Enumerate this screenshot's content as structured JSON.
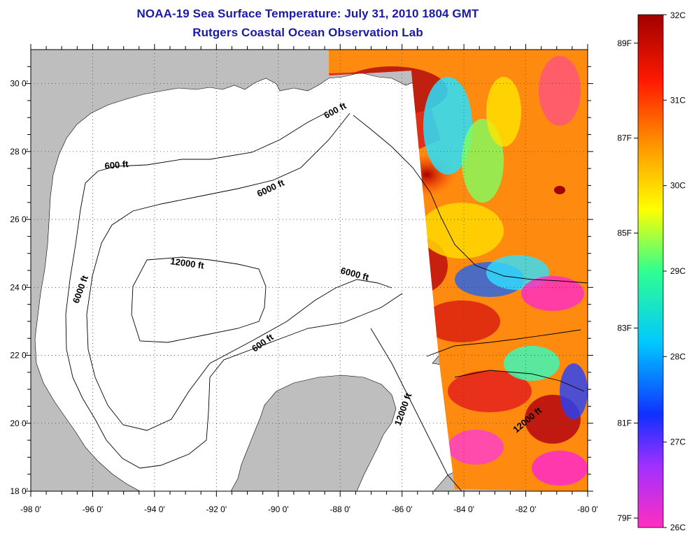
{
  "header": {
    "title": "NOAA-19 Sea Surface Temperature:  July 31, 2010 1804 GMT",
    "subtitle": "Rutgers Coastal Ocean Observation Lab"
  },
  "map": {
    "lon_ticks": [
      "-98 0'",
      "-96 0'",
      "-94 0'",
      "-92 0'",
      "-90 0'",
      "-88 0'",
      "-86 0'",
      "-84 0'",
      "-82 0'",
      "-80 0'"
    ],
    "lat_ticks": [
      "30 0'",
      "28 0'",
      "26 0'",
      "24 0'",
      "22 0'",
      "20 0'",
      "18 0'"
    ],
    "lon_range": [
      -98,
      -80
    ],
    "lat_range": [
      18,
      31
    ],
    "grid": "dotted",
    "contour_labels": [
      "600 ft",
      "600 ft",
      "6000 ft",
      "6000 ft",
      "12000 ft",
      "6000 ft",
      "600 ft",
      "12000 ft",
      "12000 ft"
    ],
    "land_color": "#bebebe",
    "ocean_color": "#ffffff"
  },
  "colorbar": {
    "celsius_labels": [
      "32C",
      "31C",
      "30C",
      "29C",
      "28C",
      "27C",
      "26C"
    ],
    "fahrenheit_labels": [
      "89F",
      "87F",
      "85F",
      "83F",
      "81F",
      "79F"
    ],
    "range_c": [
      26,
      32
    ],
    "colors": [
      "#ff2fc0",
      "#a030ff",
      "#1030ff",
      "#00c8ff",
      "#30ff90",
      "#ffff00",
      "#ff9a00",
      "#ff1a00",
      "#a00000"
    ]
  }
}
